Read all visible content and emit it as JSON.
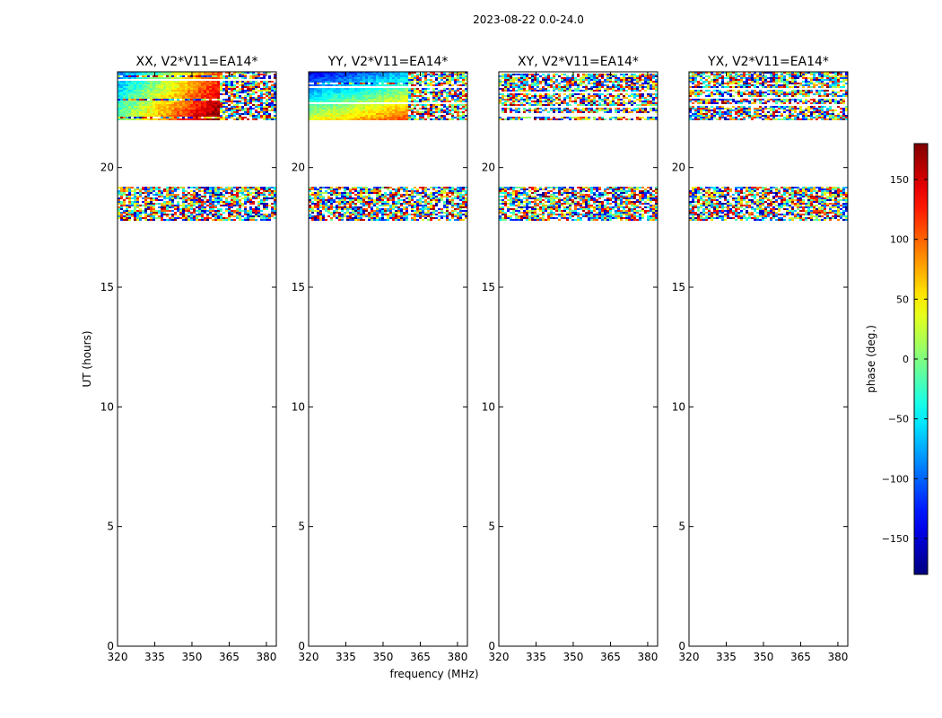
{
  "figure": {
    "suptitle": "2023-08-22 0.0-24.0",
    "xlabel": "frequency (MHz)",
    "ylabel": "UT (hours)"
  },
  "chart_data": {
    "type": "heatmap",
    "x_ticks": [
      320,
      335,
      350,
      365,
      380
    ],
    "y_ticks": [
      0,
      5,
      10,
      15,
      20
    ],
    "xlim": [
      320,
      384
    ],
    "ylim": [
      0,
      24
    ],
    "colormap": "jet",
    "colorbar": {
      "label": "phase (deg.)",
      "range": [
        -180,
        180
      ],
      "ticks": [
        150,
        100,
        50,
        0,
        -50,
        -100,
        -150
      ],
      "tick_labels": [
        "150",
        "100",
        "50",
        "0",
        "−50",
        "−100",
        "−150"
      ]
    },
    "panels": [
      {
        "title": "XX, V2*V11=EA14*",
        "data_ut_ranges": [
          [
            17.8,
            19.2
          ],
          [
            22.0,
            24.0
          ]
        ],
        "pattern_upper": "coherent frequency gradient (phase rising toward high frequency, strong red/yellow near 365-380 MHz) with noisy stripes above 365 MHz",
        "pattern_lower": "noisy phase"
      },
      {
        "title": "YY, V2*V11=EA14*",
        "data_ut_ranges": [
          [
            17.8,
            19.2
          ],
          [
            22.0,
            24.0
          ]
        ],
        "pattern_upper": "coherent phase (blue/cyan/green) below ~360 MHz, noisy above, red edge near 380 MHz",
        "pattern_lower": "mostly noisy with faint coherent streaks"
      },
      {
        "title": "XY, V2*V11=EA14*",
        "data_ut_ranges": [
          [
            17.8,
            19.2
          ],
          [
            22.0,
            24.0
          ]
        ],
        "pattern_upper": "noisy phase",
        "pattern_lower": "noisy phase"
      },
      {
        "title": "YX, V2*V11=EA14*",
        "data_ut_ranges": [
          [
            17.8,
            19.2
          ],
          [
            22.0,
            24.0
          ]
        ],
        "pattern_upper": "noisy phase",
        "pattern_lower": "noisy phase"
      }
    ]
  }
}
